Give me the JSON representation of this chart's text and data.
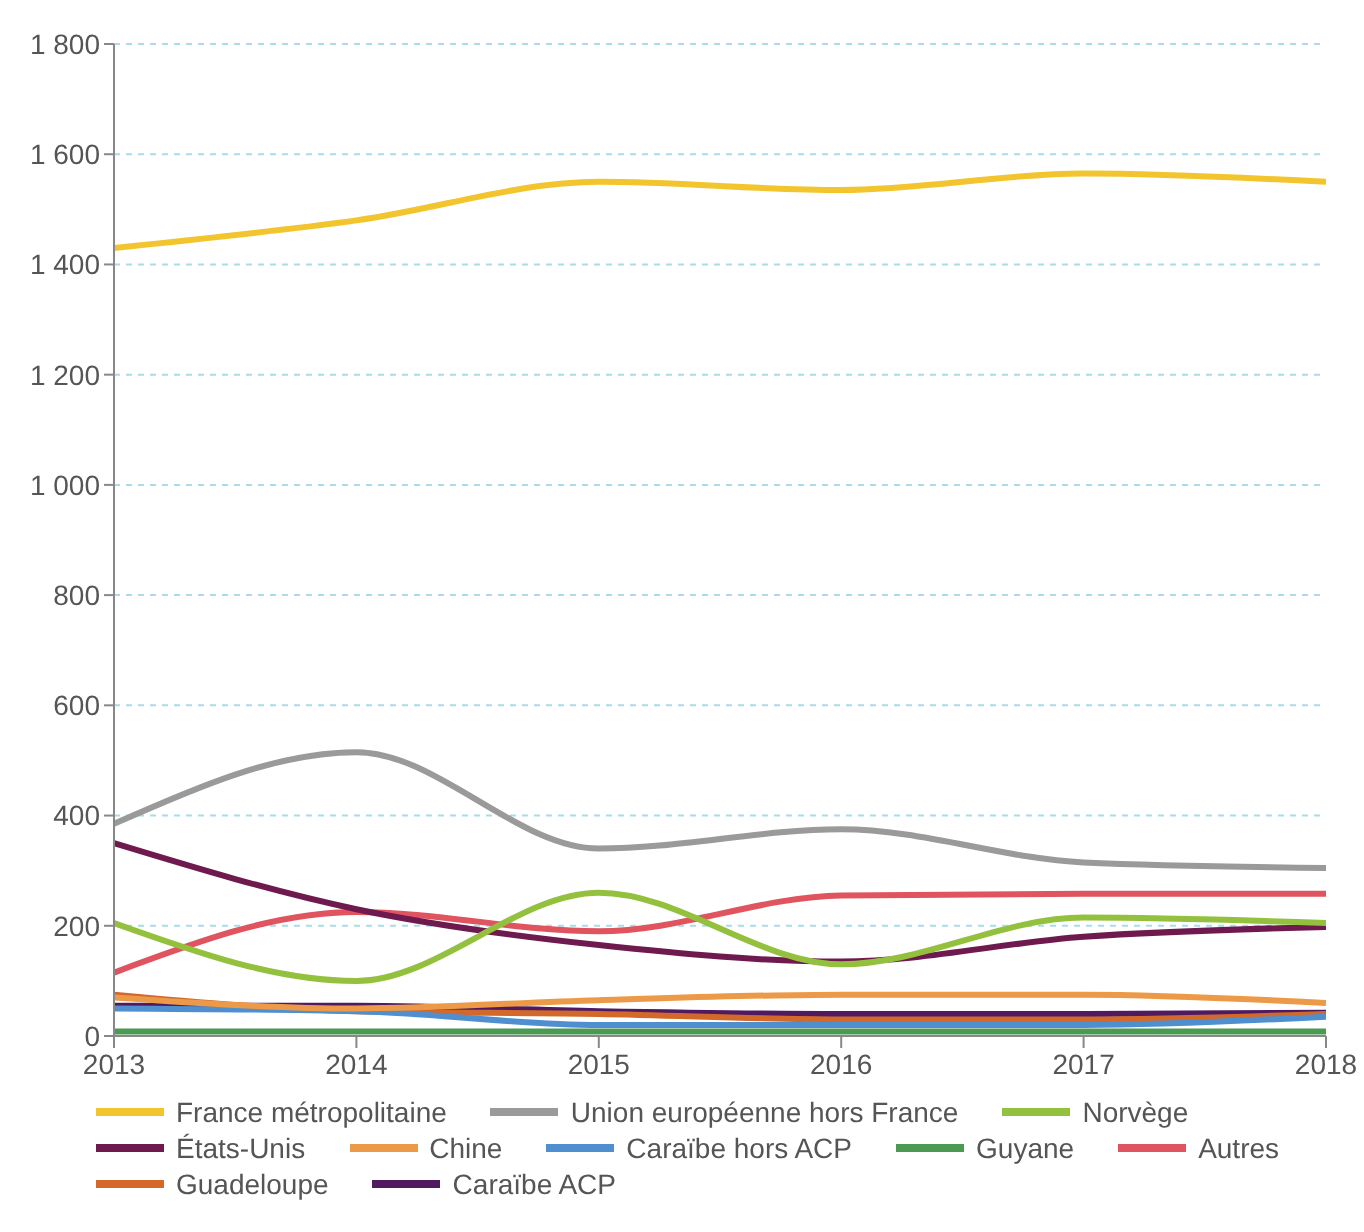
{
  "chart_data": {
    "type": "line",
    "x": [
      2013,
      2014,
      2015,
      2016,
      2017,
      2018
    ],
    "xlim": [
      2013,
      2018
    ],
    "xticks": [
      2013,
      2014,
      2015,
      2016,
      2017,
      2018
    ],
    "ylim": [
      0,
      1800
    ],
    "yticks": [
      0,
      200,
      400,
      600,
      800,
      {
        "value": 1000,
        "label": "1 000"
      },
      {
        "value": 1200,
        "label": "1 200"
      },
      {
        "value": 1400,
        "label": "1 400"
      },
      {
        "value": 1600,
        "label": "1 600"
      },
      {
        "value": 1800,
        "label": "1 800"
      }
    ],
    "grid": "y",
    "legend": "bottom",
    "marker": "none",
    "line_style": "solid",
    "series": [
      {
        "name": "France métropolitaine",
        "color": "#f2c52e",
        "values": [
          1430,
          1480,
          1550,
          1535,
          1565,
          1550
        ]
      },
      {
        "name": "Union européenne hors France",
        "color": "#9a9a9a",
        "values": [
          385,
          515,
          340,
          375,
          315,
          305
        ]
      },
      {
        "name": "Norvège",
        "color": "#93c13e",
        "values": [
          205,
          100,
          260,
          130,
          215,
          205
        ]
      },
      {
        "name": "États-Unis",
        "color": "#6e1a4f",
        "values": [
          350,
          230,
          165,
          135,
          180,
          198
        ]
      },
      {
        "name": "Chine",
        "color": "#ec9a48",
        "values": [
          70,
          50,
          65,
          75,
          75,
          60
        ]
      },
      {
        "name": "Caraïbe hors ACP",
        "color": "#4f8fcf",
        "values": [
          50,
          45,
          20,
          20,
          20,
          35
        ]
      },
      {
        "name": "Guyane",
        "color": "#4a9a52",
        "values": [
          8,
          8,
          8,
          8,
          8,
          8
        ]
      },
      {
        "name": "Autres",
        "color": "#e0545f",
        "values": [
          115,
          225,
          190,
          255,
          258,
          258
        ]
      },
      {
        "name": "Guadeloupe",
        "color": "#d2692a",
        "values": [
          75,
          45,
          40,
          30,
          30,
          40
        ]
      },
      {
        "name": "Caraïbe ACP",
        "color": "#4f1a5f",
        "values": [
          55,
          55,
          45,
          40,
          40,
          42
        ]
      }
    ]
  }
}
